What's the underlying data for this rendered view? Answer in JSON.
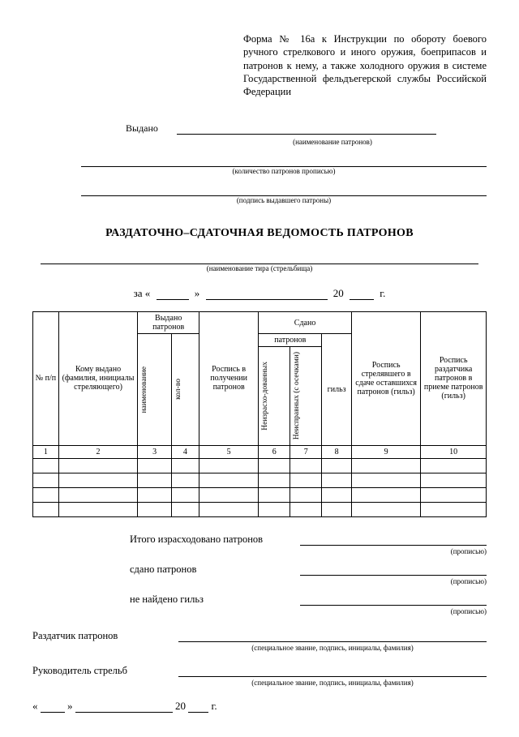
{
  "formHeader": "Форма № 16а к Инструкции по обороту боевого ручного стрелкового и иного оружия, боеприпасов и патронов к нему, а также холодного оружия в системе Государственной фельдъегерской службы Российской Федерации",
  "issued": {
    "label": "Выдано",
    "cap1": "(наименование патронов)",
    "cap2": "(количество патронов прописью)",
    "cap3": "(подпись выдавшего патроны)"
  },
  "title": "РАЗДАТОЧНО–СДАТОЧНАЯ ВЕДОМОСТЬ ПАТРОНОВ",
  "rangeCap": "(наименование тира (стрельбища)",
  "dateRow": {
    "za": "за «",
    "close": "»",
    "y20": "20",
    "yr": "г."
  },
  "table": {
    "h_np": "№ п/п",
    "h_who": "Кому выдано (фамилия, инициалы стреляющего)",
    "h_issued": "Выдано патронов",
    "h_name": "наименование",
    "h_qty": "кол-во",
    "h_receipt": "Роспись в получении патронов",
    "h_returned": "Сдано",
    "h_patr": "патронов",
    "h_unspent": "Неизрасхо-дованных",
    "h_faulty": "Неисправных (с осечками)",
    "h_cases": "гильз",
    "h_sig_shooter": "Роспись стрелявшего в сдаче оставшихся патронов (гильз)",
    "h_sig_issuer": "Роспись раздатчика патронов в приеме патронов (гильз)",
    "nums": [
      "1",
      "2",
      "3",
      "4",
      "5",
      "6",
      "7",
      "8",
      "9",
      "10"
    ],
    "blank_rows": 4
  },
  "totals": {
    "t1": "Итого израсходовано патронов",
    "t2": "сдано патронов",
    "t3": "не найдено гильз",
    "cap": "(прописью)"
  },
  "sig": {
    "s1": "Раздатчик патронов",
    "s2": "Руководитель стрельб",
    "cap": "(специальное звание, подпись, инициалы, фамилия)"
  },
  "bottomDate": {
    "open": "«",
    "mid": "»",
    "y20": "20",
    "yr": "г."
  }
}
